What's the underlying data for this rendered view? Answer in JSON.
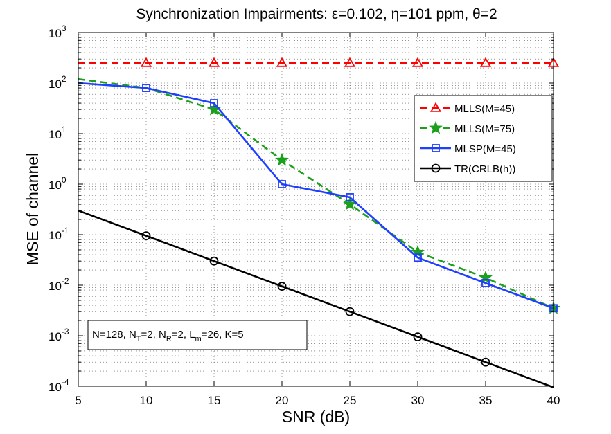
{
  "chart_data": {
    "type": "line",
    "title": "Synchronization Impairments: ε=0.102, η=101 ppm, θ=2",
    "xlabel": "SNR (dB)",
    "ylabel": "MSE of channel",
    "xlim": [
      5,
      40
    ],
    "ylim_log10": [
      -4,
      3
    ],
    "yscale": "log",
    "grid": true,
    "x_ticks": [
      5,
      10,
      15,
      20,
      25,
      30,
      35,
      40
    ],
    "y_tick_base": "10",
    "y_tick_exponents": [
      "-4",
      "-3",
      "-2",
      "-1",
      "0",
      "1",
      "2",
      "3"
    ],
    "legend_position": "right",
    "series": [
      {
        "name": "MLLS(M=45)",
        "color": "#ff0000",
        "dash": "dashed",
        "marker": "triangle",
        "x": [
          5,
          10,
          15,
          20,
          25,
          30,
          35,
          40
        ],
        "y": [
          250,
          250,
          250,
          250,
          250,
          250,
          250,
          250
        ],
        "marker_x": [
          10,
          15,
          20,
          25,
          30,
          35,
          40
        ]
      },
      {
        "name": "MLLS(M=75)",
        "color": "#1aa01a",
        "dash": "dashed",
        "marker": "star",
        "x": [
          5,
          10,
          15,
          20,
          25,
          30,
          35,
          40
        ],
        "y": [
          120,
          80,
          30,
          3,
          0.4,
          0.045,
          0.014,
          0.0035
        ],
        "marker_x": [
          15,
          20,
          25,
          30,
          35,
          40
        ]
      },
      {
        "name": "MLSP(M=45)",
        "color": "#1f3fff",
        "dash": "solid",
        "marker": "square",
        "x": [
          5,
          10,
          15,
          20,
          25,
          30,
          35,
          40
        ],
        "y": [
          100,
          80,
          40,
          1.0,
          0.55,
          0.035,
          0.011,
          0.0035
        ],
        "marker_x": [
          10,
          15,
          20,
          25,
          30,
          35,
          40
        ]
      },
      {
        "name": "TR(CRLB(h))",
        "color": "#000000",
        "dash": "solid",
        "marker": "circle",
        "x": [
          5,
          10,
          15,
          20,
          25,
          30,
          35,
          40
        ],
        "y": [
          0.3,
          0.095,
          0.03,
          0.0095,
          0.003,
          0.00095,
          0.0003,
          9.5e-05
        ],
        "marker_x": [
          10,
          15,
          20,
          25,
          30,
          35
        ]
      }
    ],
    "annotation": {
      "parts": [
        {
          "t": "N=128, N"
        },
        {
          "t": "T",
          "sub": true
        },
        {
          "t": "=2, N"
        },
        {
          "t": "R",
          "sub": true
        },
        {
          "t": "=2, L"
        },
        {
          "t": "m",
          "sub": true
        },
        {
          "t": "=26, K=5"
        }
      ]
    }
  }
}
